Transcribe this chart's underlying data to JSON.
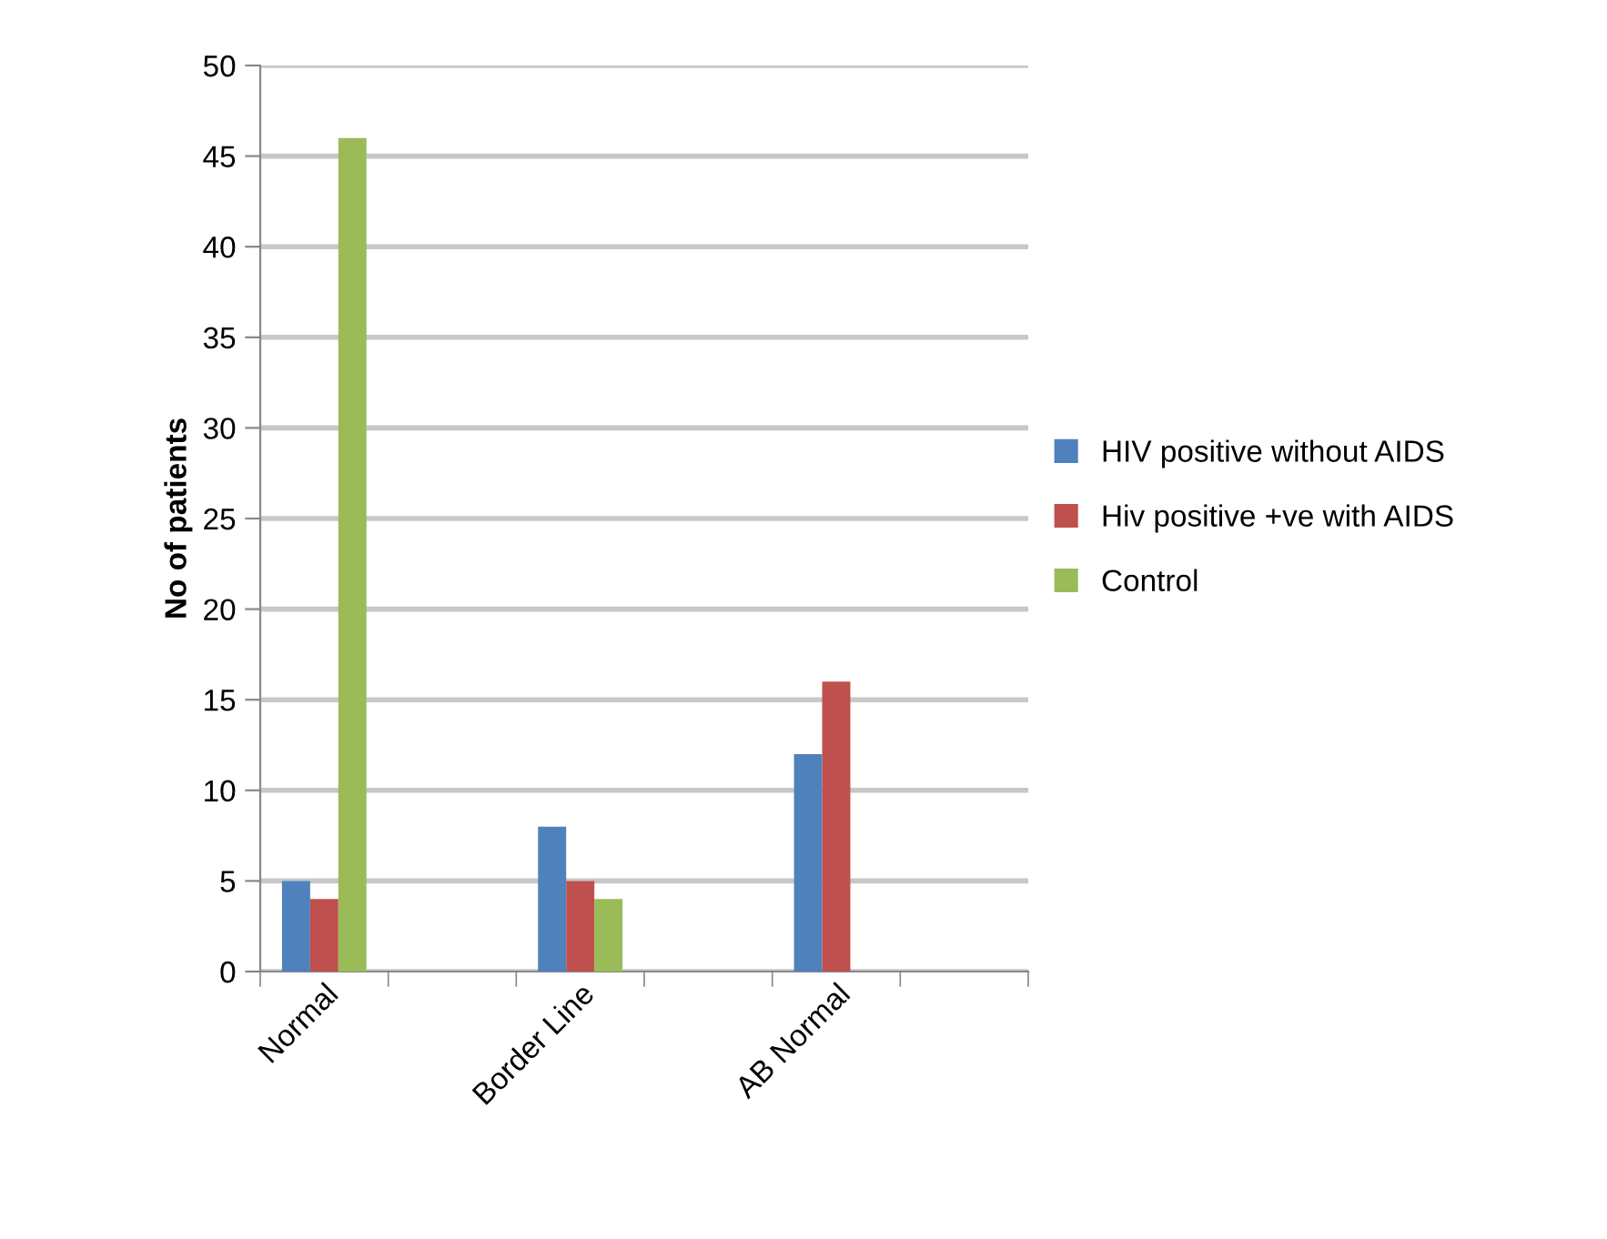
{
  "chart_data": {
    "type": "bar",
    "ylabel": "No of patients",
    "categories": [
      "Normal",
      null,
      "Border Line",
      null,
      "AB Normal",
      null
    ],
    "series": [
      {
        "name": "HIV positive without AIDS",
        "color": "#4f81bd",
        "values": [
          5,
          null,
          8,
          null,
          12,
          null
        ]
      },
      {
        "name": "Hiv positive +ve with AIDS",
        "color": "#c0504d",
        "values": [
          4,
          null,
          5,
          null,
          16,
          null
        ]
      },
      {
        "name": "Control",
        "color": "#9bbb59",
        "values": [
          46,
          null,
          4,
          null,
          null,
          null
        ]
      }
    ],
    "ylim": [
      0,
      50
    ],
    "yticks": [
      0,
      5,
      10,
      15,
      20,
      25,
      30,
      35,
      40,
      45,
      50
    ],
    "grid": "y",
    "legend": "right"
  }
}
